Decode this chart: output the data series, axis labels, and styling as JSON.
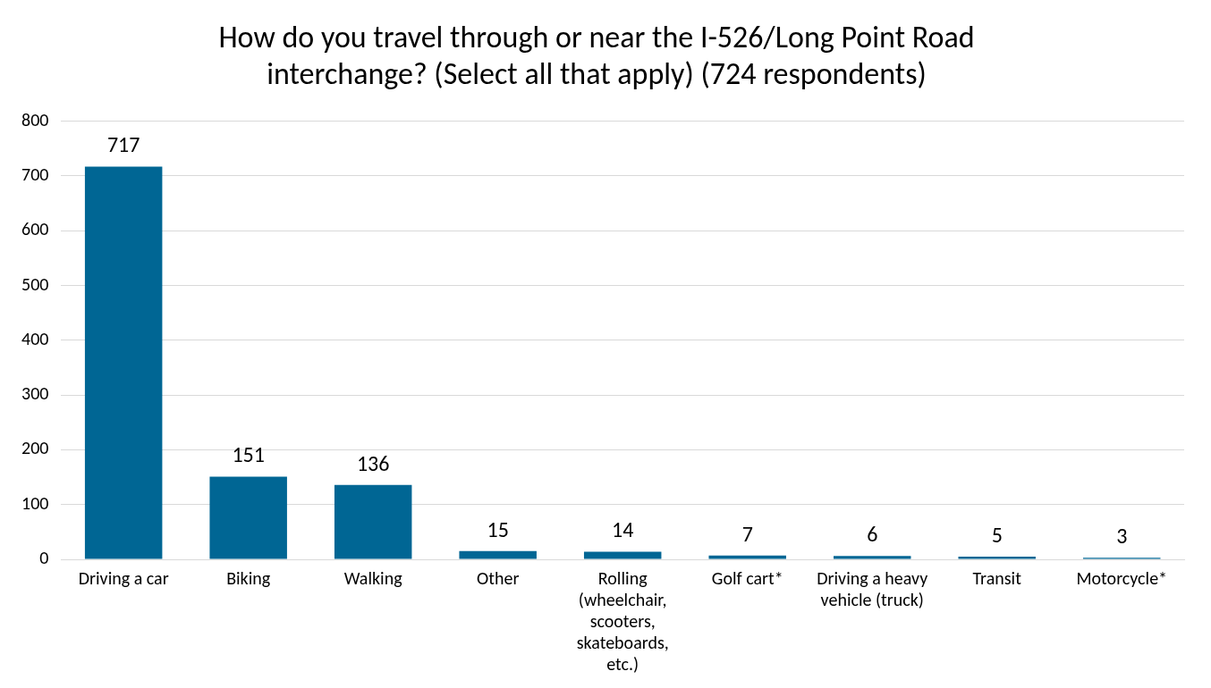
{
  "chart_data": {
    "type": "bar",
    "title": "How do you travel through or near the I-526/Long Point Road interchange? (Select all that apply) (724 respondents)",
    "categories": [
      "Driving a car",
      "Biking",
      "Walking",
      "Other",
      "Rolling (wheelchair, scooters, skateboards, etc.)",
      "Golf cart*",
      "Driving a heavy vehicle (truck)",
      "Transit",
      "Motorcycle*"
    ],
    "values": [
      717,
      151,
      136,
      15,
      14,
      7,
      6,
      5,
      3
    ],
    "color": "#006694",
    "ylim": [
      0,
      800
    ],
    "yticks": [
      0,
      100,
      200,
      300,
      400,
      500,
      600,
      700,
      800
    ],
    "grid": "y",
    "data_labels": true,
    "legend": false
  }
}
